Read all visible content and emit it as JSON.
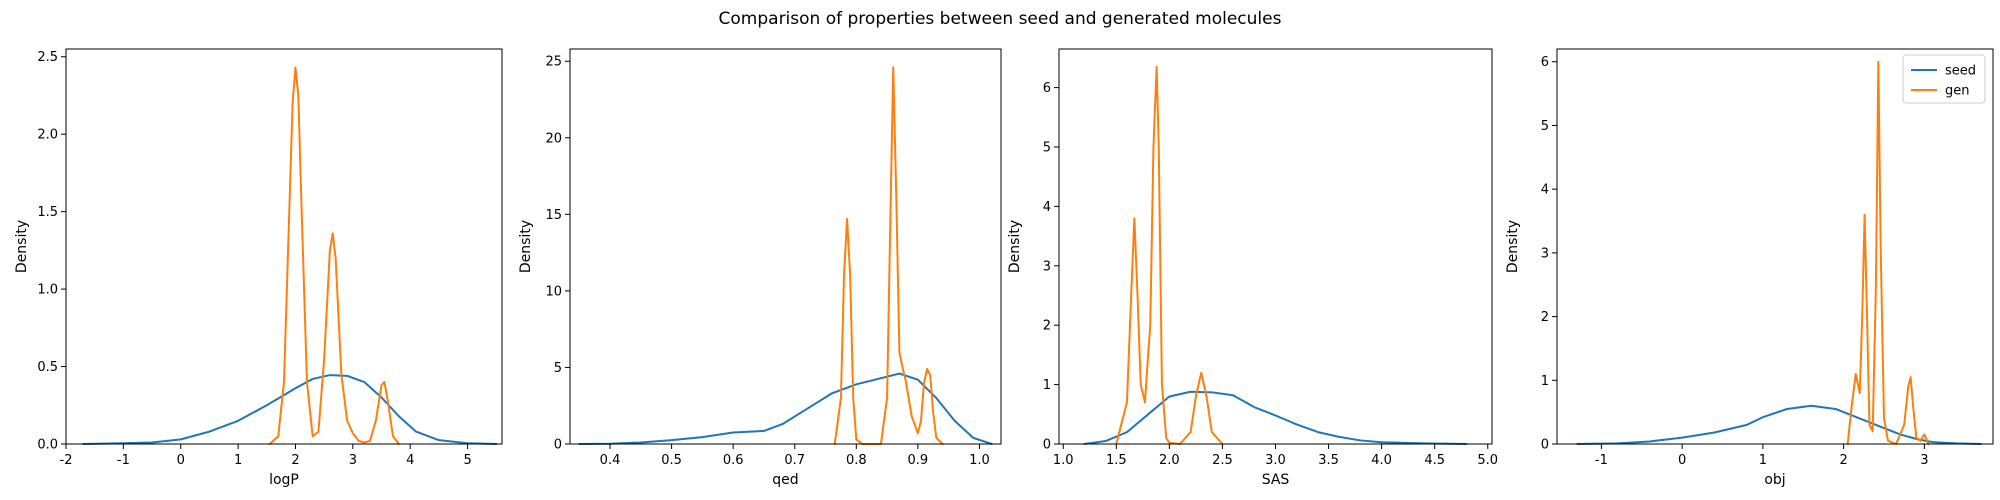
{
  "figure": {
    "title": "Comparison of properties between seed and generated molecules"
  },
  "legend": {
    "placement": "top-right of fourth panel",
    "entries": [
      {
        "name": "seed",
        "color": "#1f77b4"
      },
      {
        "name": "gen",
        "color": "#ff7f0e"
      }
    ]
  },
  "chart_data": [
    {
      "type": "line",
      "xlabel": "logP",
      "ylabel": "Density",
      "xlim": [
        -2.0,
        5.6
      ],
      "ylim": [
        0,
        2.55
      ],
      "xticks": [
        "-2",
        "-1",
        "0",
        "1",
        "2",
        "3",
        "4",
        "5"
      ],
      "yticks": [
        "0.0",
        "0.5",
        "1.0",
        "1.5",
        "2.0",
        "2.5"
      ],
      "grid": false,
      "series": [
        {
          "name": "seed",
          "color": "#1f77b4",
          "x": [
            -1.7,
            -1.0,
            -0.5,
            0.0,
            0.5,
            1.0,
            1.5,
            2.0,
            2.3,
            2.6,
            2.9,
            3.2,
            3.5,
            3.8,
            4.1,
            4.5,
            5.0,
            5.5
          ],
          "y": [
            0.0,
            0.005,
            0.01,
            0.03,
            0.08,
            0.15,
            0.25,
            0.36,
            0.42,
            0.445,
            0.44,
            0.4,
            0.3,
            0.18,
            0.08,
            0.025,
            0.005,
            0.0
          ]
        },
        {
          "name": "gen",
          "color": "#ff7f0e",
          "x": [
            1.55,
            1.7,
            1.8,
            1.9,
            1.95,
            2.0,
            2.05,
            2.1,
            2.2,
            2.3,
            2.4,
            2.5,
            2.6,
            2.65,
            2.7,
            2.8,
            2.9,
            3.0,
            3.1,
            3.2,
            3.3,
            3.4,
            3.5,
            3.55,
            3.6,
            3.7,
            3.8
          ],
          "y": [
            0.0,
            0.05,
            0.4,
            1.6,
            2.2,
            2.43,
            2.25,
            1.6,
            0.4,
            0.05,
            0.08,
            0.55,
            1.25,
            1.36,
            1.2,
            0.45,
            0.15,
            0.07,
            0.02,
            0.01,
            0.02,
            0.15,
            0.38,
            0.4,
            0.3,
            0.05,
            0.0
          ]
        }
      ]
    },
    {
      "type": "line",
      "xlabel": "qed",
      "ylabel": "Density",
      "xlim": [
        0.335,
        1.035
      ],
      "ylim": [
        0,
        25.8
      ],
      "xticks": [
        "0.4",
        "0.5",
        "0.6",
        "0.7",
        "0.8",
        "0.9",
        "1.0"
      ],
      "yticks": [
        "0",
        "5",
        "10",
        "15",
        "20",
        "25"
      ],
      "grid": false,
      "series": [
        {
          "name": "seed",
          "color": "#1f77b4",
          "x": [
            0.35,
            0.4,
            0.45,
            0.5,
            0.55,
            0.6,
            0.65,
            0.68,
            0.72,
            0.76,
            0.8,
            0.84,
            0.87,
            0.9,
            0.93,
            0.96,
            0.99,
            1.02
          ],
          "y": [
            0.0,
            0.02,
            0.1,
            0.25,
            0.45,
            0.75,
            0.85,
            1.3,
            2.3,
            3.3,
            3.9,
            4.3,
            4.6,
            4.2,
            3.0,
            1.5,
            0.4,
            0.0
          ]
        },
        {
          "name": "gen",
          "color": "#ff7f0e",
          "x": [
            0.765,
            0.775,
            0.78,
            0.785,
            0.79,
            0.795,
            0.8,
            0.81,
            0.84,
            0.85,
            0.855,
            0.86,
            0.865,
            0.87,
            0.875,
            0.88,
            0.89,
            0.9,
            0.905,
            0.91,
            0.915,
            0.92,
            0.925,
            0.93,
            0.94
          ],
          "y": [
            0.0,
            3.0,
            11.0,
            14.7,
            11.0,
            3.0,
            0.3,
            0.0,
            0.0,
            3.0,
            14.0,
            24.6,
            16.0,
            6.0,
            5.0,
            4.2,
            1.8,
            0.7,
            1.5,
            4.0,
            4.9,
            4.5,
            2.0,
            0.4,
            0.0
          ]
        }
      ]
    },
    {
      "type": "line",
      "xlabel": "SAS",
      "ylabel": "Density",
      "xlim": [
        0.96,
        5.04
      ],
      "ylim": [
        0,
        6.65
      ],
      "xticks": [
        "1.0",
        "1.5",
        "2.0",
        "2.5",
        "3.0",
        "3.5",
        "4.0",
        "4.5",
        "5.0"
      ],
      "yticks": [
        "0",
        "1",
        "2",
        "3",
        "4",
        "5",
        "6"
      ],
      "grid": false,
      "series": [
        {
          "name": "seed",
          "color": "#1f77b4",
          "x": [
            1.2,
            1.4,
            1.6,
            1.8,
            2.0,
            2.2,
            2.4,
            2.6,
            2.8,
            3.0,
            3.2,
            3.4,
            3.6,
            3.8,
            4.0,
            4.4,
            4.8
          ],
          "y": [
            0.0,
            0.05,
            0.2,
            0.5,
            0.8,
            0.88,
            0.87,
            0.82,
            0.62,
            0.48,
            0.33,
            0.2,
            0.12,
            0.06,
            0.03,
            0.01,
            0.0
          ]
        },
        {
          "name": "gen",
          "color": "#ff7f0e",
          "x": [
            1.5,
            1.6,
            1.64,
            1.67,
            1.7,
            1.73,
            1.77,
            1.8,
            1.82,
            1.85,
            1.88,
            1.9,
            1.93,
            1.97,
            2.0,
            2.1,
            2.2,
            2.25,
            2.3,
            2.35,
            2.4,
            2.5
          ],
          "y": [
            0.0,
            0.7,
            2.5,
            3.8,
            2.5,
            1.0,
            0.7,
            1.5,
            2.0,
            5.0,
            6.35,
            5.0,
            1.0,
            0.1,
            0.02,
            0.0,
            0.2,
            0.8,
            1.2,
            0.8,
            0.2,
            0.0
          ]
        }
      ]
    },
    {
      "type": "line",
      "xlabel": "obj",
      "ylabel": "Density",
      "xlim": [
        -1.55,
        3.85
      ],
      "ylim": [
        0,
        6.2
      ],
      "xticks": [
        "-1",
        "0",
        "1",
        "2",
        "3"
      ],
      "yticks": [
        "0",
        "1",
        "2",
        "3",
        "4",
        "5",
        "6"
      ],
      "grid": false,
      "series": [
        {
          "name": "seed",
          "color": "#1f77b4",
          "x": [
            -1.3,
            -0.8,
            -0.4,
            0.0,
            0.4,
            0.8,
            1.0,
            1.3,
            1.6,
            1.9,
            2.1,
            2.3,
            2.5,
            2.7,
            2.9,
            3.1,
            3.4,
            3.7
          ],
          "y": [
            0.0,
            0.01,
            0.04,
            0.1,
            0.18,
            0.3,
            0.42,
            0.55,
            0.6,
            0.55,
            0.45,
            0.35,
            0.25,
            0.15,
            0.08,
            0.03,
            0.01,
            0.0
          ]
        },
        {
          "name": "gen",
          "color": "#ff7f0e",
          "x": [
            2.05,
            2.1,
            2.15,
            2.2,
            2.23,
            2.26,
            2.29,
            2.32,
            2.36,
            2.4,
            2.43,
            2.46,
            2.5,
            2.55,
            2.65,
            2.75,
            2.8,
            2.83,
            2.86,
            2.9,
            2.95,
            3.0,
            3.05
          ],
          "y": [
            0.0,
            0.6,
            1.1,
            0.8,
            2.0,
            3.6,
            2.0,
            0.3,
            0.2,
            2.5,
            6.0,
            3.0,
            0.4,
            0.05,
            0.0,
            0.3,
            0.9,
            1.05,
            0.6,
            0.1,
            0.05,
            0.15,
            0.0
          ]
        }
      ]
    }
  ]
}
